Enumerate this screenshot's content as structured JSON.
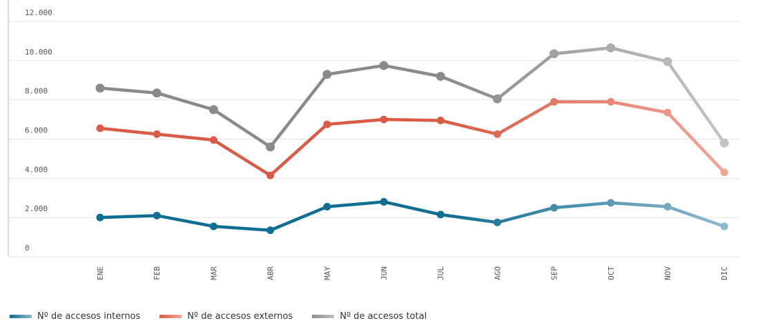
{
  "chart_data": {
    "type": "line",
    "categories": [
      "ENE",
      "FEB",
      "MAR",
      "ABR",
      "MAY",
      "JUN",
      "JUL",
      "AGO",
      "SEP",
      "OCT",
      "NOV",
      "DIC"
    ],
    "ylim": [
      0,
      12000
    ],
    "yticks": [
      0,
      2000,
      4000,
      6000,
      8000,
      10000,
      12000
    ],
    "ytick_labels": [
      "0",
      "2.000",
      "4.000",
      "6.000",
      "8.000",
      "10.000",
      "12.000"
    ],
    "grid": true,
    "legend_position": "bottom-left",
    "series": [
      {
        "name": "Nº de accesos internos",
        "color": "#0f6e91",
        "color_light": "#8fb8cc",
        "values": [
          2000,
          2100,
          1550,
          1350,
          2550,
          2800,
          2150,
          1750,
          2500,
          2750,
          2550,
          1550
        ]
      },
      {
        "name": "Nº de accesos externos",
        "color": "#d95b45",
        "color_light": "#f1a598",
        "values": [
          6550,
          6250,
          5950,
          4150,
          6750,
          7000,
          6950,
          6250,
          7900,
          7900,
          7350,
          4300
        ]
      },
      {
        "name": "Nº de accesos total",
        "color": "#8a8a8a",
        "color_light": "#c4c4c4",
        "values": [
          8600,
          8350,
          7500,
          5600,
          9300,
          9750,
          9200,
          8050,
          10350,
          10650,
          9950,
          5800
        ]
      }
    ]
  }
}
